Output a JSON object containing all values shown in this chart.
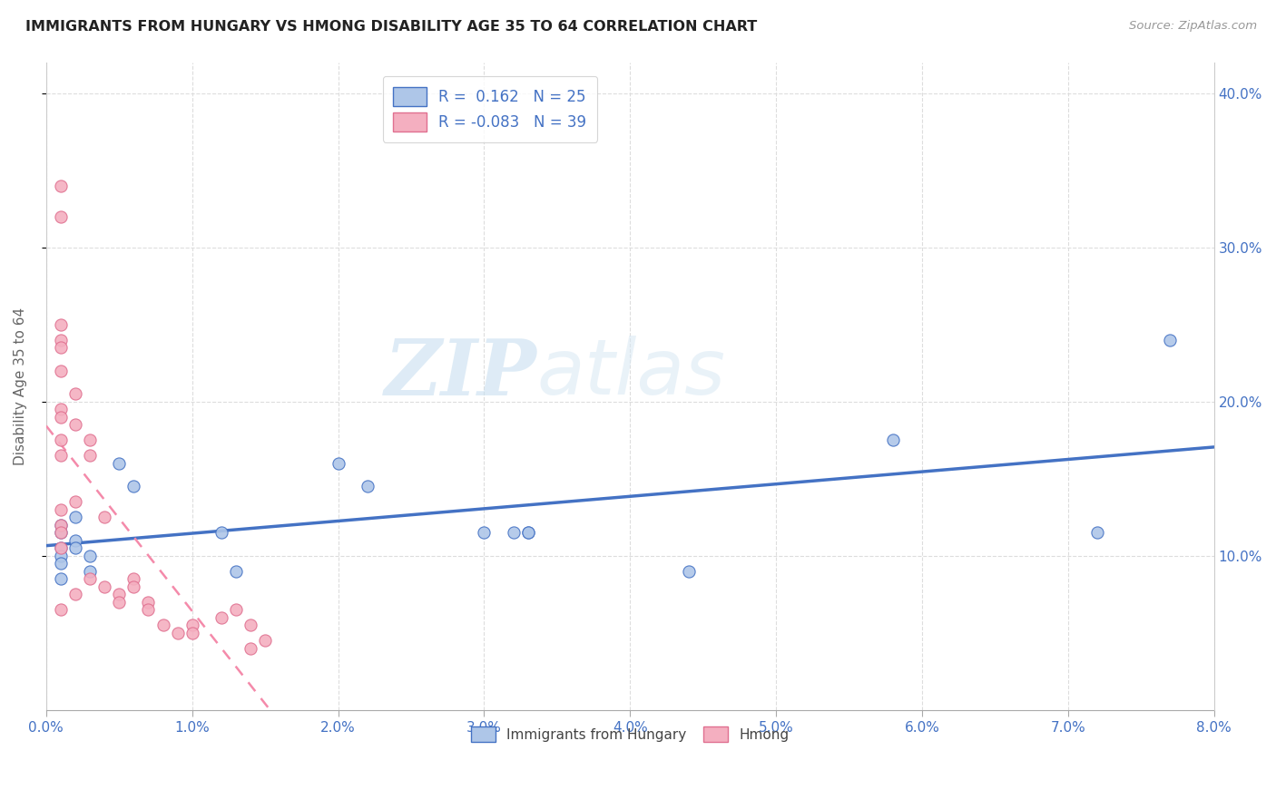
{
  "title": "IMMIGRANTS FROM HUNGARY VS HMONG DISABILITY AGE 35 TO 64 CORRELATION CHART",
  "source": "Source: ZipAtlas.com",
  "ylabel": "Disability Age 35 to 64",
  "xlim": [
    0.0,
    0.08
  ],
  "ylim": [
    0.0,
    0.42
  ],
  "R_hungary": 0.162,
  "N_hungary": 25,
  "R_hmong": -0.083,
  "N_hmong": 39,
  "hungary_color": "#aec6e8",
  "hmong_color": "#f4afc0",
  "hungary_line_color": "#4472c4",
  "hmong_line_color": "#f48aaa",
  "watermark_zip": "ZIP",
  "watermark_atlas": "atlas",
  "legend_label_hungary": "Immigrants from Hungary",
  "legend_label_hmong": "Hmong",
  "hungary_scatter_x": [
    0.001,
    0.001,
    0.001,
    0.001,
    0.001,
    0.001,
    0.002,
    0.002,
    0.002,
    0.003,
    0.003,
    0.005,
    0.006,
    0.012,
    0.013,
    0.02,
    0.022,
    0.03,
    0.032,
    0.033,
    0.033,
    0.044,
    0.058,
    0.072,
    0.077
  ],
  "hungary_scatter_y": [
    0.105,
    0.1,
    0.115,
    0.12,
    0.095,
    0.085,
    0.11,
    0.125,
    0.105,
    0.1,
    0.09,
    0.16,
    0.145,
    0.115,
    0.09,
    0.16,
    0.145,
    0.115,
    0.115,
    0.115,
    0.115,
    0.09,
    0.175,
    0.115,
    0.24
  ],
  "hmong_scatter_x": [
    0.001,
    0.001,
    0.001,
    0.001,
    0.001,
    0.001,
    0.001,
    0.001,
    0.001,
    0.001,
    0.001,
    0.001,
    0.001,
    0.001,
    0.001,
    0.002,
    0.002,
    0.002,
    0.002,
    0.003,
    0.003,
    0.003,
    0.004,
    0.004,
    0.005,
    0.005,
    0.006,
    0.006,
    0.007,
    0.007,
    0.008,
    0.009,
    0.01,
    0.01,
    0.012,
    0.013,
    0.014,
    0.014,
    0.015
  ],
  "hmong_scatter_y": [
    0.34,
    0.32,
    0.25,
    0.24,
    0.235,
    0.22,
    0.195,
    0.19,
    0.175,
    0.165,
    0.13,
    0.12,
    0.115,
    0.105,
    0.065,
    0.205,
    0.185,
    0.135,
    0.075,
    0.175,
    0.165,
    0.085,
    0.125,
    0.08,
    0.075,
    0.07,
    0.085,
    0.08,
    0.07,
    0.065,
    0.055,
    0.05,
    0.055,
    0.05,
    0.06,
    0.065,
    0.055,
    0.04,
    0.045
  ]
}
